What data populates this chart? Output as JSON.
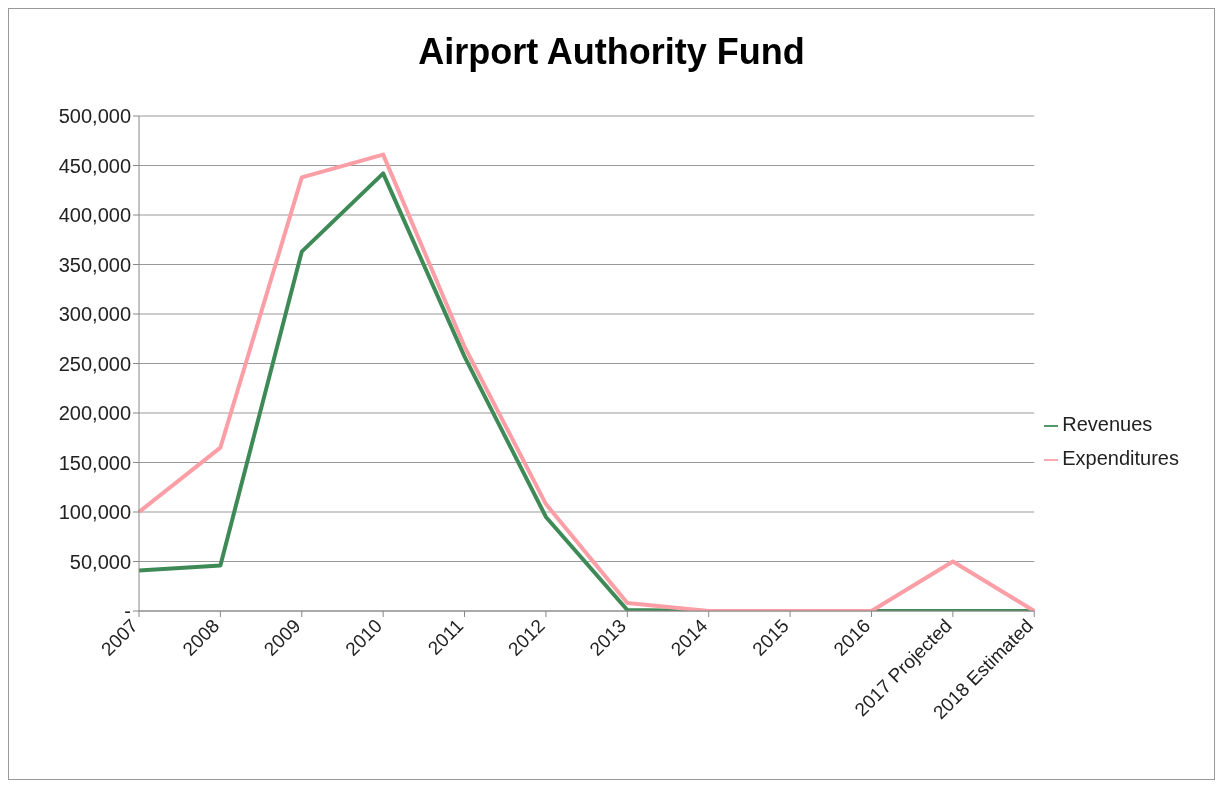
{
  "chart_data": {
    "type": "line",
    "title": "Airport Authority Fund",
    "categories": [
      "2007",
      "2008",
      "2009",
      "2010",
      "2011",
      "2012",
      "2013",
      "2014",
      "2015",
      "2016",
      "2017 Projected",
      "2018 Estimated"
    ],
    "series": [
      {
        "name": "Revenues",
        "color": "#3e8a57",
        "values": [
          41000,
          46000,
          363000,
          442000,
          257000,
          95000,
          1000,
          0,
          0,
          0,
          0,
          0
        ]
      },
      {
        "name": "Expenditures",
        "color": "#fb9ea6",
        "values": [
          100000,
          165000,
          438000,
          461000,
          267000,
          108000,
          8000,
          0,
          0,
          0,
          50000,
          0
        ]
      }
    ],
    "ylim": [
      0,
      500000
    ],
    "yticks": [
      {
        "value": 0,
        "label": "-"
      },
      {
        "value": 50000,
        "label": "50,000"
      },
      {
        "value": 100000,
        "label": "100,000"
      },
      {
        "value": 150000,
        "label": "150,000"
      },
      {
        "value": 200000,
        "label": "200,000"
      },
      {
        "value": 250000,
        "label": "250,000"
      },
      {
        "value": 300000,
        "label": "300,000"
      },
      {
        "value": 350000,
        "label": "350,000"
      },
      {
        "value": 400000,
        "label": "400,000"
      },
      {
        "value": 450000,
        "label": "450,000"
      },
      {
        "value": 500000,
        "label": "500,000"
      }
    ],
    "grid": "y",
    "legend": "right",
    "marker": "none",
    "line_style": "solid"
  }
}
